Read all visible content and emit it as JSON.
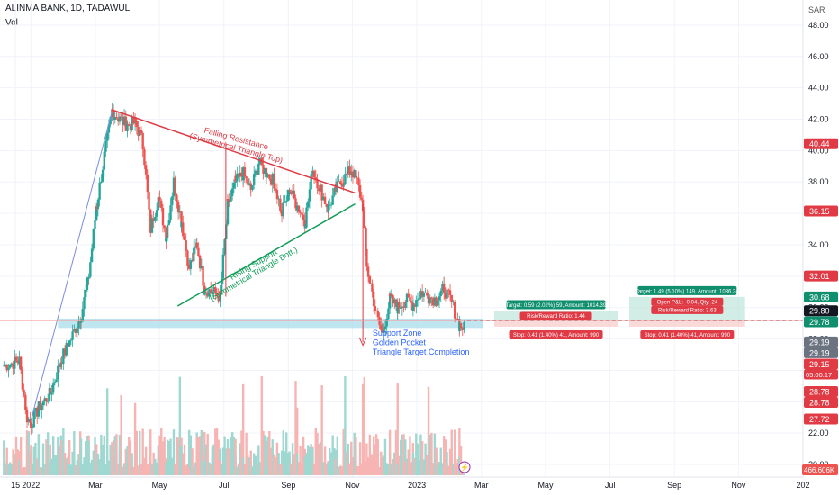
{
  "header": {
    "title": "ALINMA BANK, 1D, TADAWUL",
    "volume_label": "Vol"
  },
  "currency": "SAR",
  "colors": {
    "up": "#26a69a",
    "down": "#ef5350",
    "resistance": "#e03a45",
    "support": "#0f9d58",
    "fib_line": "#7b8ce0",
    "zone": "#a9dcec",
    "blue_text": "#2962ff",
    "target_box": "#0f8f6e",
    "stop_box": "#e03a45"
  },
  "chart_data": {
    "type": "candlestick",
    "title": "ALINMA BANK, 1D, TADAWUL",
    "yaxis": {
      "ticks": [
        48,
        46,
        44,
        42,
        40,
        38,
        36,
        34,
        32,
        30,
        28,
        26,
        24,
        22,
        20
      ],
      "tick_labels": [
        "48.00",
        "46.00",
        "44.00",
        "42.00",
        "40.00",
        "38.00",
        "36.00",
        "34.00",
        "32.00",
        "30.00",
        "28.00",
        "26.00",
        "24.00",
        "22.00",
        "20.00"
      ],
      "range": [
        19.2,
        49.6
      ],
      "unit": "SAR"
    },
    "xaxis": {
      "labels": [
        "15",
        "2022",
        "Mar",
        "May",
        "Jul",
        "Sep",
        "Nov",
        "2023",
        "Mar",
        "May",
        "Jul",
        "Sep",
        "Nov",
        "202"
      ],
      "label_positions": [
        2021.96,
        2022.0,
        2022.167,
        2022.333,
        2022.5,
        2022.667,
        2022.833,
        2023.0,
        2023.167,
        2023.333,
        2023.5,
        2023.667,
        2023.833,
        2024.0
      ],
      "range": [
        2021.92,
        2024.0
      ]
    },
    "price_path": [
      [
        2021.93,
        26.3
      ],
      [
        2021.97,
        26.6
      ],
      [
        2021.99,
        23.0
      ],
      [
        2022.0,
        22.6
      ],
      [
        2022.02,
        23.6
      ],
      [
        2022.05,
        24.5
      ],
      [
        2022.08,
        26.8
      ],
      [
        2022.1,
        27.8
      ],
      [
        2022.13,
        29.5
      ],
      [
        2022.15,
        32.0
      ],
      [
        2022.17,
        36.5
      ],
      [
        2022.19,
        39.6
      ],
      [
        2022.21,
        42.5
      ],
      [
        2022.23,
        42.0
      ],
      [
        2022.25,
        41.6
      ],
      [
        2022.27,
        41.8
      ],
      [
        2022.29,
        40.5
      ],
      [
        2022.31,
        35.0
      ],
      [
        2022.33,
        37.0
      ],
      [
        2022.35,
        34.6
      ],
      [
        2022.37,
        38.0
      ],
      [
        2022.39,
        35.5
      ],
      [
        2022.41,
        32.5
      ],
      [
        2022.43,
        34.0
      ],
      [
        2022.45,
        31.2
      ],
      [
        2022.47,
        31.0
      ],
      [
        2022.49,
        30.7
      ],
      [
        2022.51,
        36.5
      ],
      [
        2022.53,
        38.0
      ],
      [
        2022.55,
        38.5
      ],
      [
        2022.57,
        37.5
      ],
      [
        2022.59,
        39.2
      ],
      [
        2022.61,
        38.6
      ],
      [
        2022.63,
        38.0
      ],
      [
        2022.65,
        36.0
      ],
      [
        2022.67,
        37.5
      ],
      [
        2022.69,
        36.5
      ],
      [
        2022.71,
        35.5
      ],
      [
        2022.73,
        38.8
      ],
      [
        2022.75,
        37.5
      ],
      [
        2022.77,
        36.3
      ],
      [
        2022.79,
        37.5
      ],
      [
        2022.81,
        38.2
      ],
      [
        2022.83,
        38.8
      ],
      [
        2022.845,
        38.0
      ],
      [
        2022.86,
        36.5
      ],
      [
        2022.87,
        32.5
      ],
      [
        2022.88,
        31.5
      ],
      [
        2022.895,
        29.5
      ],
      [
        2022.91,
        28.3
      ],
      [
        2022.93,
        30.5
      ],
      [
        2022.95,
        30.0
      ],
      [
        2022.97,
        30.5
      ],
      [
        2022.99,
        30.2
      ],
      [
        2023.01,
        31.0
      ],
      [
        2023.03,
        30.7
      ],
      [
        2023.05,
        30.5
      ],
      [
        2023.07,
        31.2
      ],
      [
        2023.09,
        30.3
      ],
      [
        2023.11,
        28.9
      ],
      [
        2023.125,
        28.6
      ]
    ],
    "volume_max": "466.606K",
    "annotations": {
      "falling_resistance": "Falling Resistance",
      "falling_resistance_sub": "(Symmetrical Triangle Top)",
      "rising_support": "Rising Support",
      "rising_support_sub": "(Symmetrical Triangle Bott.)",
      "support_zone": "Support Zone",
      "golden_pocket": "Golden Pocket",
      "triangle_target": "Triangle Target Completion"
    },
    "trade_boxes": [
      {
        "target": "Target: 0.59 (2.02%) 59, Amount: 1014.39",
        "rr": "Risk/Reward Ratio: 1.44",
        "stop": "Stop: 0.41 (1.40%) 41, Amount: 990"
      },
      {
        "target": "Target: 1.49 (5.10%) 149, Amount: 1036.34",
        "rr": "Risk/Reward Ratio: 3.63",
        "open": "Open P&L: -0.04, Qty: 24",
        "stop": "Stop: 0.41 (1.40%) 41, Amount: 990"
      }
    ],
    "price_tags": [
      {
        "value": 40.44,
        "text": "40.44",
        "color": "#e03a45"
      },
      {
        "value": 36.15,
        "text": "36.15",
        "color": "#e03a45"
      },
      {
        "value": 32.01,
        "text": "32.01",
        "color": "#e03a45"
      },
      {
        "value": 30.68,
        "text": "30.68",
        "color": "#0f8f6e"
      },
      {
        "value": 29.8,
        "text": "29.80",
        "color": "#131722"
      },
      {
        "value": 29.78,
        "text": "29.78",
        "color": "#0f8f6e"
      },
      {
        "value": 29.19,
        "text": "29.19",
        "color": "#6b7280"
      },
      {
        "value": 29.19,
        "text": "29.19",
        "color": "#6b7280"
      },
      {
        "value": 29.15,
        "text": "29.15",
        "color": "#e03a45",
        "sub": "05:00:17"
      },
      {
        "value": 28.78,
        "text": "28.78",
        "color": "#e03a45"
      },
      {
        "value": 28.78,
        "text": "28.78",
        "color": "#e03a45"
      },
      {
        "value": 27.72,
        "text": "27.72",
        "color": "#e03a45"
      }
    ]
  }
}
